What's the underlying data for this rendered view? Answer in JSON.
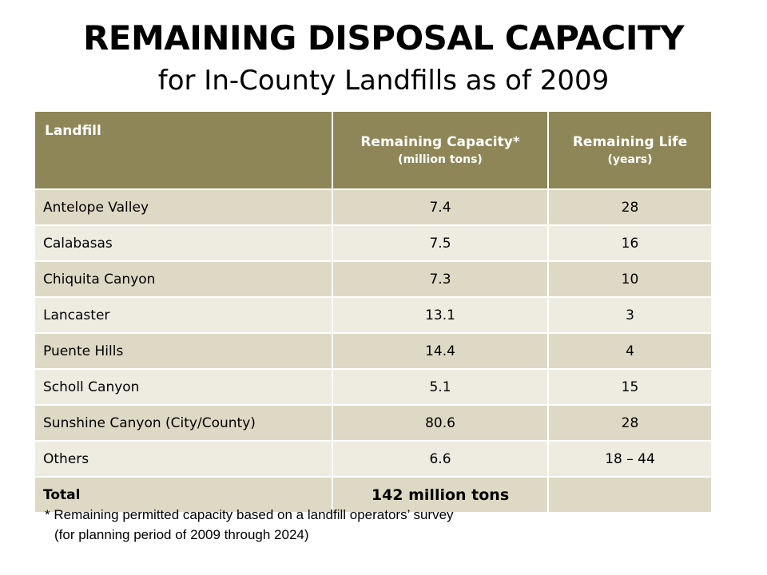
{
  "title": {
    "main": "REMAINING DISPOSAL CAPACITY",
    "sub": "for In-County Landfills as of 2009"
  },
  "table": {
    "headers": [
      {
        "label": "Landfill",
        "unit": ""
      },
      {
        "label": "Remaining Capacity*",
        "unit": "(million tons)"
      },
      {
        "label": "Remaining Life",
        "unit": "(years)"
      }
    ],
    "rows": [
      [
        "Antelope Valley",
        "7.4",
        "28"
      ],
      [
        "Calabasas",
        "7.5",
        "16"
      ],
      [
        "Chiquita Canyon",
        "7.3",
        "10"
      ],
      [
        "Lancaster",
        "13.1",
        "3"
      ],
      [
        "Puente Hills",
        "14.4",
        "4"
      ],
      [
        "Scholl Canyon",
        "5.1",
        "15"
      ],
      [
        "Sunshine Canyon (City/County)",
        "80.6",
        "28"
      ],
      [
        "Others",
        "6.6",
        "18 – 44"
      ]
    ],
    "total": [
      "Total",
      "142 million tons",
      ""
    ]
  },
  "footnote": {
    "line1": "* Remaining permitted capacity based on a landfill operators’ survey",
    "line2": "(for planning period of 2009 through 2024)"
  },
  "colors": {
    "header_bg": "#8e8657",
    "row_dark": "#ddd9c4",
    "row_light": "#eeece1"
  }
}
